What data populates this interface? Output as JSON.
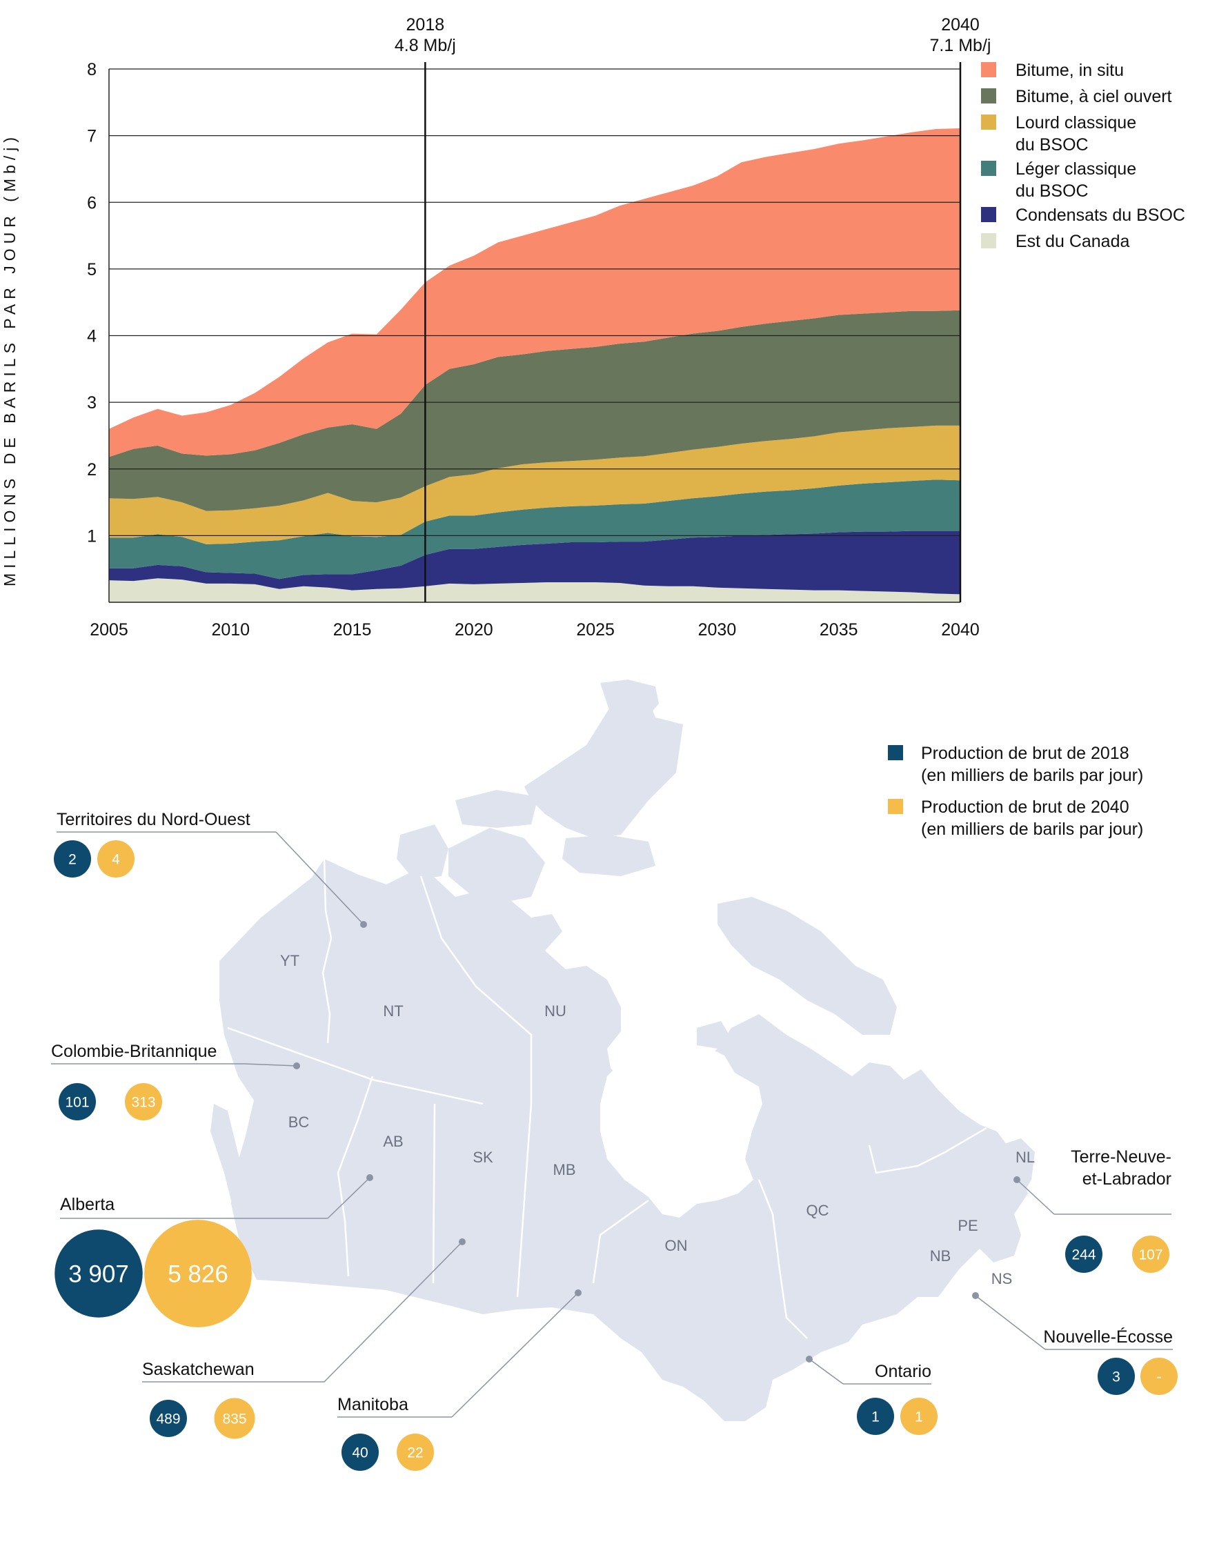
{
  "chart_data": {
    "type": "area",
    "stacked": true,
    "ylabel": "MILLIONS DE BARILS PAR JOUR (Mb/j)",
    "xlim": [
      2005,
      2040
    ],
    "ylim": [
      0,
      8
    ],
    "x_ticks": [
      "2005",
      "2010",
      "2015",
      "2020",
      "2025",
      "2030",
      "2035",
      "2040"
    ],
    "y_ticks": [
      "1",
      "2",
      "3",
      "4",
      "5",
      "6",
      "7",
      "8"
    ],
    "grid": true,
    "legend": "right",
    "markers": [
      {
        "x": 2018,
        "year": "2018",
        "value": "4.8 Mb/j"
      },
      {
        "x": 2040,
        "year": "2040",
        "value": "7.1 Mb/j"
      }
    ],
    "x": [
      2005,
      2006,
      2007,
      2008,
      2009,
      2010,
      2011,
      2012,
      2013,
      2014,
      2015,
      2016,
      2017,
      2018,
      2019,
      2020,
      2021,
      2022,
      2023,
      2024,
      2025,
      2026,
      2027,
      2028,
      2029,
      2030,
      2031,
      2032,
      2033,
      2034,
      2035,
      2036,
      2037,
      2038,
      2039,
      2040
    ],
    "series": [
      {
        "name": "Est du Canada",
        "color": "#dfe3ce",
        "values": [
          0.33,
          0.32,
          0.36,
          0.34,
          0.28,
          0.28,
          0.27,
          0.2,
          0.24,
          0.22,
          0.18,
          0.2,
          0.21,
          0.24,
          0.28,
          0.27,
          0.28,
          0.29,
          0.3,
          0.3,
          0.3,
          0.29,
          0.25,
          0.24,
          0.24,
          0.22,
          0.21,
          0.2,
          0.19,
          0.18,
          0.18,
          0.17,
          0.16,
          0.15,
          0.13,
          0.12
        ]
      },
      {
        "name": "Condensats du BSOC",
        "color": "#2d3180",
        "values": [
          0.18,
          0.19,
          0.2,
          0.2,
          0.17,
          0.16,
          0.16,
          0.15,
          0.17,
          0.2,
          0.24,
          0.28,
          0.34,
          0.47,
          0.52,
          0.53,
          0.55,
          0.57,
          0.58,
          0.6,
          0.6,
          0.62,
          0.66,
          0.7,
          0.73,
          0.76,
          0.79,
          0.81,
          0.83,
          0.85,
          0.87,
          0.89,
          0.9,
          0.92,
          0.94,
          0.95
        ]
      },
      {
        "name": "Léger classique du BSOC",
        "color": "#437e7b",
        "values": [
          0.46,
          0.46,
          0.46,
          0.44,
          0.42,
          0.44,
          0.48,
          0.58,
          0.58,
          0.62,
          0.57,
          0.5,
          0.46,
          0.5,
          0.5,
          0.5,
          0.52,
          0.53,
          0.54,
          0.54,
          0.55,
          0.56,
          0.57,
          0.58,
          0.59,
          0.61,
          0.63,
          0.65,
          0.66,
          0.68,
          0.7,
          0.72,
          0.74,
          0.75,
          0.77,
          0.76
        ]
      },
      {
        "name": "Lourd classique du BSOC",
        "color": "#e0b24a",
        "values": [
          0.59,
          0.58,
          0.56,
          0.52,
          0.5,
          0.5,
          0.5,
          0.52,
          0.54,
          0.6,
          0.53,
          0.52,
          0.56,
          0.53,
          0.58,
          0.62,
          0.66,
          0.68,
          0.68,
          0.68,
          0.69,
          0.7,
          0.71,
          0.72,
          0.73,
          0.74,
          0.75,
          0.76,
          0.77,
          0.78,
          0.8,
          0.8,
          0.81,
          0.81,
          0.81,
          0.82
        ]
      },
      {
        "name": "Bitume, à ciel ouvert",
        "color": "#68775b",
        "values": [
          0.62,
          0.75,
          0.77,
          0.73,
          0.83,
          0.84,
          0.87,
          0.94,
          0.99,
          0.98,
          1.15,
          1.1,
          1.26,
          1.52,
          1.62,
          1.65,
          1.67,
          1.65,
          1.67,
          1.68,
          1.69,
          1.71,
          1.72,
          1.73,
          1.74,
          1.74,
          1.75,
          1.76,
          1.77,
          1.77,
          1.76,
          1.75,
          1.74,
          1.74,
          1.72,
          1.73
        ]
      },
      {
        "name": "Bitume, in situ",
        "color": "#f98a6b",
        "values": [
          0.42,
          0.47,
          0.55,
          0.57,
          0.65,
          0.74,
          0.86,
          0.99,
          1.14,
          1.28,
          1.36,
          1.42,
          1.56,
          1.54,
          1.55,
          1.63,
          1.72,
          1.78,
          1.83,
          1.9,
          1.97,
          2.07,
          2.14,
          2.18,
          2.22,
          2.32,
          2.47,
          2.5,
          2.52,
          2.54,
          2.57,
          2.6,
          2.64,
          2.68,
          2.73,
          2.73
        ]
      }
    ]
  },
  "legend_items": [
    {
      "label_lines": [
        "Bitume, in situ"
      ],
      "color": "#f98a6b"
    },
    {
      "label_lines": [
        "Bitume, à ciel ouvert"
      ],
      "color": "#68775b"
    },
    {
      "label_lines": [
        "Lourd classique",
        "du BSOC"
      ],
      "color": "#e0b24a"
    },
    {
      "label_lines": [
        "Léger classique",
        "du BSOC"
      ],
      "color": "#437e7b"
    },
    {
      "label_lines": [
        "Condensats du BSOC"
      ],
      "color": "#2d3180"
    },
    {
      "label_lines": [
        "Est du Canada"
      ],
      "color": "#dfe3ce"
    }
  ],
  "map": {
    "colors": {
      "land": "#dfe3ee",
      "border": "#ffffff",
      "production_2018": "#0d4a6e",
      "production_2040": "#f6bc4a",
      "leader": "#8c93a3"
    },
    "legend": [
      {
        "key": "2018",
        "line1": "Production de brut de 2018",
        "line2": "(en milliers de barils par jour)"
      },
      {
        "key": "2040",
        "line1": "Production de brut de 2040",
        "line2": "(en milliers de barils par jour)"
      }
    ],
    "provinces": [
      "YT",
      "NT",
      "NU",
      "BC",
      "AB",
      "SK",
      "MB",
      "ON",
      "QC",
      "NL",
      "PE",
      "NB",
      "NS"
    ],
    "regions": [
      {
        "name": "Territoires du Nord-Ouest",
        "v2018": "2",
        "v2040": "4",
        "num2018": 2,
        "num2040": 4
      },
      {
        "name": "Colombie-Britannique",
        "v2018": "101",
        "v2040": "313",
        "num2018": 101,
        "num2040": 313
      },
      {
        "name": "Alberta",
        "v2018": "3 907",
        "v2040": "5 826",
        "num2018": 3907,
        "num2040": 5826
      },
      {
        "name": "Saskatchewan",
        "v2018": "489",
        "v2040": "835",
        "num2018": 489,
        "num2040": 835
      },
      {
        "name": "Manitoba",
        "v2018": "40",
        "v2040": "22",
        "num2018": 40,
        "num2040": 22
      },
      {
        "name": "Ontario",
        "v2018": "1",
        "v2040": "1",
        "num2018": 1,
        "num2040": 1
      },
      {
        "name": "Terre-Neuve-et-Labrador",
        "name_lines": [
          "Terre-Neuve-",
          "et-Labrador"
        ],
        "v2018": "244",
        "v2040": "107",
        "num2018": 244,
        "num2040": 107
      },
      {
        "name": "Nouvelle-Écosse",
        "v2018": "3",
        "v2040": "-",
        "num2018": 3,
        "num2040": 0
      }
    ]
  }
}
